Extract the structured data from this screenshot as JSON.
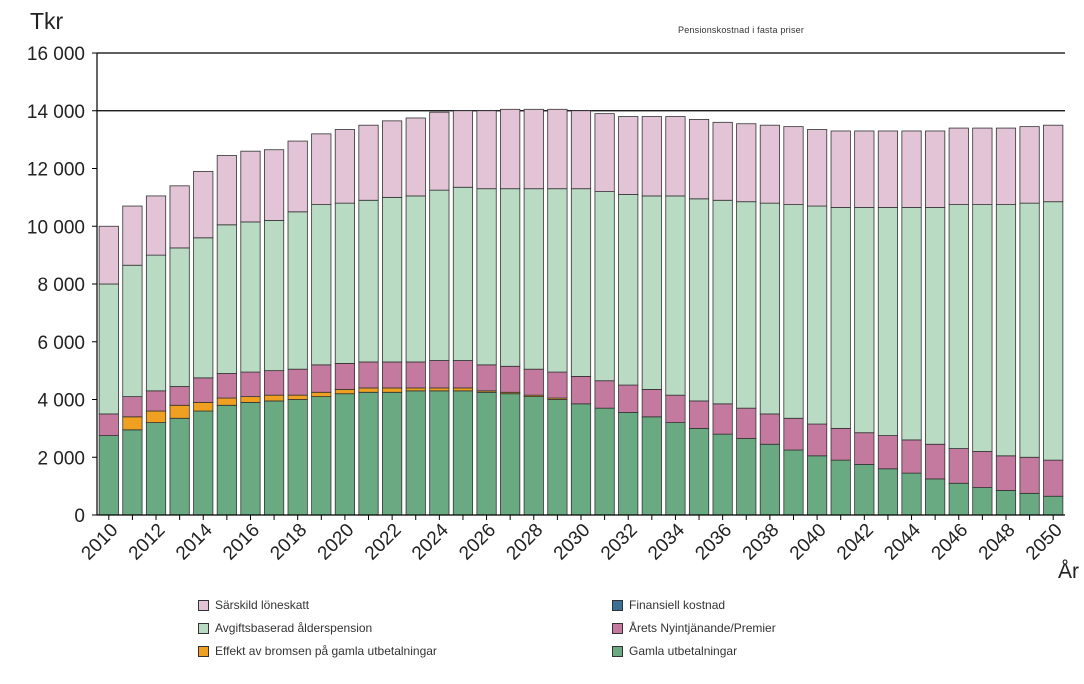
{
  "chart_data": {
    "type": "bar",
    "stacked": true,
    "title": "Pensionskostnad i fasta priser",
    "ylabel": "Tkr",
    "xlabel": "År",
    "ylim": [
      0,
      16000
    ],
    "y_ticks": [
      "0",
      "2 000",
      "4 000",
      "6 000",
      "8 000",
      "10 000",
      "12 000",
      "14 000",
      "16 000"
    ],
    "y_tick_values": [
      0,
      2000,
      4000,
      6000,
      8000,
      10000,
      12000,
      14000,
      16000
    ],
    "x_tick_labels": [
      "2010",
      "2012",
      "2014",
      "2016",
      "2018",
      "2020",
      "2022",
      "2024",
      "2026",
      "2028",
      "2030",
      "2032",
      "2034",
      "2036",
      "2038",
      "2040",
      "2042",
      "2044",
      "2046",
      "2048",
      "2050"
    ],
    "gridlines_at": [
      14000,
      16000
    ],
    "categories": [
      2010,
      2011,
      2012,
      2013,
      2014,
      2015,
      2016,
      2017,
      2018,
      2019,
      2020,
      2021,
      2022,
      2023,
      2024,
      2025,
      2026,
      2027,
      2028,
      2029,
      2030,
      2031,
      2032,
      2033,
      2034,
      2035,
      2036,
      2037,
      2038,
      2039,
      2040,
      2041,
      2042,
      2043,
      2044,
      2045,
      2046,
      2047,
      2048,
      2049,
      2050
    ],
    "series": [
      {
        "name": "Gamla utbetalningar",
        "color": "#6aaa82",
        "values": [
          2750,
          2950,
          3200,
          3350,
          3600,
          3800,
          3900,
          3950,
          4000,
          4100,
          4200,
          4250,
          4250,
          4300,
          4300,
          4300,
          4250,
          4200,
          4100,
          4000,
          3850,
          3700,
          3550,
          3400,
          3200,
          3000,
          2800,
          2650,
          2450,
          2250,
          2050,
          1900,
          1750,
          1600,
          1450,
          1250,
          1100,
          950,
          850,
          750,
          650
        ]
      },
      {
        "name": "Effekt av bromsen på gamla utbetalningar",
        "color": "#f0a020",
        "values": [
          0,
          450,
          400,
          450,
          300,
          250,
          200,
          200,
          150,
          150,
          150,
          150,
          150,
          100,
          100,
          100,
          50,
          50,
          50,
          50,
          0,
          0,
          0,
          0,
          0,
          0,
          0,
          0,
          0,
          0,
          0,
          0,
          0,
          0,
          0,
          0,
          0,
          0,
          0,
          0,
          0
        ]
      },
      {
        "name": "Årets Nyintjänande/Premier",
        "color": "#c47a9e",
        "values": [
          750,
          700,
          700,
          650,
          850,
          850,
          850,
          850,
          900,
          950,
          900,
          900,
          900,
          900,
          950,
          950,
          900,
          900,
          900,
          900,
          950,
          950,
          950,
          950,
          950,
          950,
          1050,
          1050,
          1050,
          1100,
          1100,
          1100,
          1100,
          1150,
          1150,
          1200,
          1200,
          1250,
          1200,
          1250,
          1250
        ]
      },
      {
        "name": "Avgiftsbaserad ålderspension",
        "color": "#b9dbc3",
        "values": [
          4500,
          4550,
          4700,
          4800,
          4850,
          5150,
          5200,
          5200,
          5450,
          5550,
          5550,
          5600,
          5700,
          5750,
          5900,
          6000,
          6100,
          6150,
          6250,
          6350,
          6500,
          6550,
          6600,
          6700,
          6900,
          7000,
          7050,
          7150,
          7300,
          7400,
          7550,
          7650,
          7800,
          7900,
          8050,
          8200,
          8450,
          8550,
          8700,
          8800,
          8950
        ]
      },
      {
        "name": "Finansiell kostnad",
        "color": "#3a6f96",
        "values": [
          0,
          0,
          0,
          0,
          0,
          0,
          0,
          0,
          0,
          0,
          0,
          0,
          0,
          0,
          0,
          0,
          0,
          0,
          0,
          0,
          0,
          0,
          0,
          0,
          0,
          0,
          0,
          0,
          0,
          0,
          0,
          0,
          0,
          0,
          0,
          0,
          0,
          0,
          0,
          0,
          0
        ]
      },
      {
        "name": "Särskild löneskatt",
        "color": "#e2c4d6",
        "values": [
          2000,
          2050,
          2050,
          2150,
          2300,
          2400,
          2450,
          2450,
          2450,
          2450,
          2550,
          2600,
          2650,
          2700,
          2700,
          2650,
          2700,
          2750,
          2750,
          2750,
          2700,
          2700,
          2700,
          2750,
          2750,
          2750,
          2700,
          2700,
          2700,
          2700,
          2650,
          2650,
          2650,
          2650,
          2650,
          2650,
          2650,
          2650,
          2650,
          2650,
          2650
        ]
      }
    ],
    "legend": {
      "placement": "bottom",
      "columns": 2,
      "entries": [
        {
          "label": "Särskild löneskatt",
          "color": "#e2c4d6"
        },
        {
          "label": "Finansiell kostnad",
          "color": "#3a6f96"
        },
        {
          "label": "Avgiftsbaserad ålderspension",
          "color": "#b9dbc3"
        },
        {
          "label": "Årets Nyintjänande/Premier",
          "color": "#c47a9e"
        },
        {
          "label": "Effekt av bromsen på gamla utbetalningar",
          "color": "#f0a020"
        },
        {
          "label": "Gamla utbetalningar",
          "color": "#6aaa82"
        }
      ]
    }
  }
}
